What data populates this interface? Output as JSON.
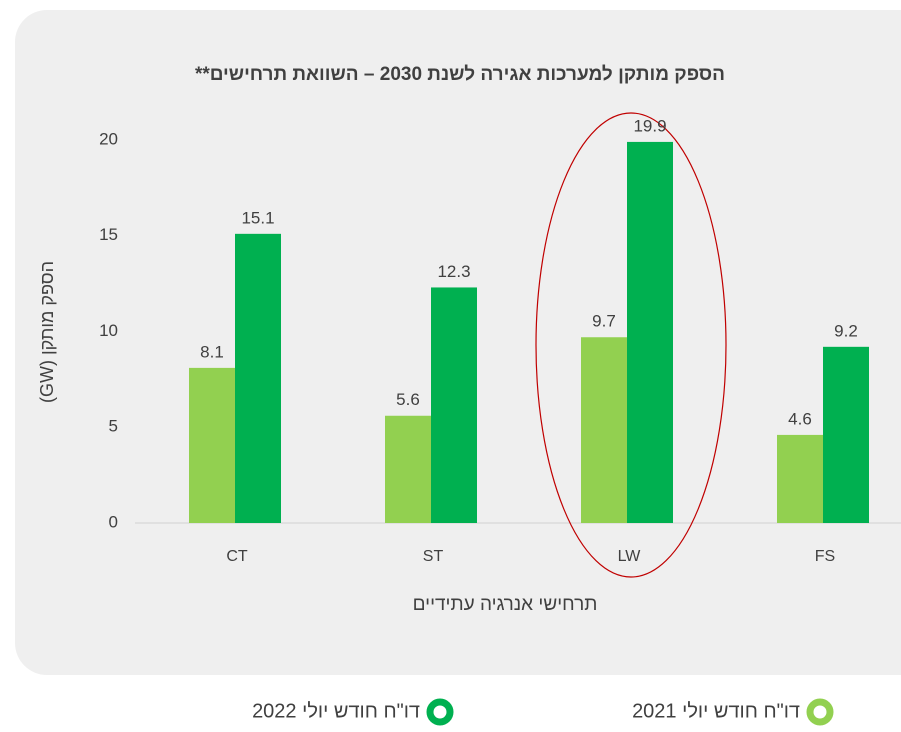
{
  "chart_data": {
    "type": "bar",
    "title": "הספק מותקן למערכות אגירה לשנת 2030 – השוואת תרחישים**",
    "y_label": "הספק מותקן (GW)",
    "x_label": "תרחישי אנרגיה עתידיים",
    "categories": [
      "CT",
      "ST",
      "LW",
      "FS"
    ],
    "series": [
      {
        "name": "דו\"ח חודש יולי 2021",
        "color": "#92d050",
        "values": [
          8.1,
          5.6,
          9.7,
          4.6
        ]
      },
      {
        "name": "דו\"ח חודש יולי 2022",
        "color": "#00b050",
        "values": [
          15.1,
          12.3,
          19.9,
          9.2
        ]
      }
    ],
    "ylim": [
      0,
      20
    ],
    "yticks": [
      0,
      5,
      10,
      15,
      20
    ],
    "grid": false
  }
}
